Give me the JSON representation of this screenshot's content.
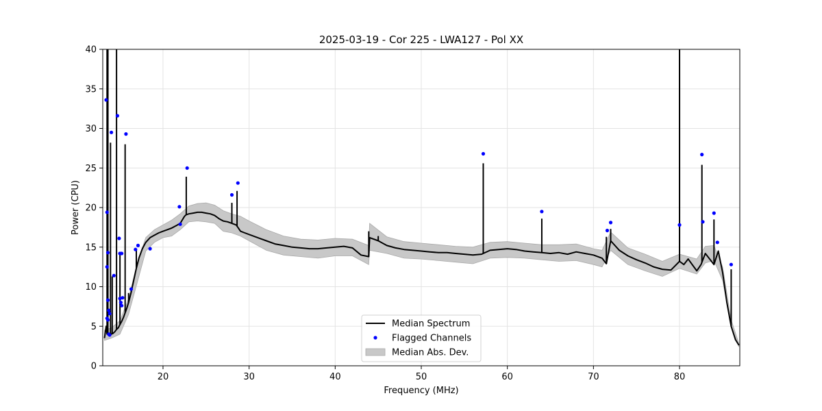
{
  "chart_data": {
    "type": "line",
    "title": "2025-03-19 - Cor 225 - LWA127 - Pol XX",
    "xlabel": "Frequency (MHz)",
    "ylabel": "Power (CPU)",
    "xlim": [
      13.0,
      87.0
    ],
    "ylim": [
      0,
      40
    ],
    "x_ticks": [
      20,
      30,
      40,
      50,
      60,
      70,
      80
    ],
    "y_ticks": [
      0,
      5,
      10,
      15,
      20,
      25,
      30,
      35,
      40
    ],
    "grid": true,
    "legend_position": "bottom-center",
    "legend": [
      {
        "label": "Median Spectrum",
        "kind": "line",
        "color": "#000000"
      },
      {
        "label": "Flagged Channels",
        "kind": "marker",
        "color": "#0000ff"
      },
      {
        "label": "Median Abs. Dev.",
        "kind": "band",
        "color": "#c8c8c8"
      }
    ],
    "series": [
      {
        "name": "Median Spectrum",
        "color": "#000000",
        "x": [
          13.2,
          13.4,
          13.5,
          13.6,
          13.7,
          13.8,
          13.9,
          14.0,
          14.2,
          14.4,
          14.6,
          14.8,
          14.9,
          15.0,
          15.2,
          15.4,
          15.6,
          15.8,
          16.0,
          16.3,
          16.6,
          16.9,
          17.2,
          17.6,
          18.0,
          18.5,
          19.0,
          19.5,
          20.0,
          20.5,
          21.0,
          21.5,
          22.0,
          22.5,
          22.7,
          23.0,
          23.5,
          24.0,
          24.5,
          25.0,
          25.5,
          26.0,
          26.5,
          27.0,
          27.5,
          28.0,
          28.5,
          28.7,
          29.0,
          29.5,
          30.0,
          31.0,
          32.0,
          33.0,
          34.0,
          35.0,
          36.0,
          37.0,
          38.0,
          39.0,
          40.0,
          41.0,
          42.0,
          43.0,
          43.9,
          44.0,
          45.0,
          46.0,
          47.0,
          48.0,
          49.0,
          50.0,
          51.0,
          52.0,
          53.0,
          54.0,
          55.0,
          56.0,
          57.0,
          58.0,
          59.0,
          60.0,
          61.0,
          62.0,
          63.0,
          64.0,
          65.0,
          66.0,
          67.0,
          68.0,
          69.0,
          70.0,
          71.0,
          71.5,
          72.0,
          73.0,
          74.0,
          75.0,
          76.0,
          77.0,
          78.0,
          79.0,
          80.0,
          80.5,
          81.0,
          82.0,
          82.5,
          83.0,
          83.5,
          84.0,
          84.5,
          85.0,
          85.5,
          86.0,
          86.5,
          86.9
        ],
        "values": [
          3.5,
          5.0,
          4.0,
          4.2,
          3.9,
          4.0,
          4.1,
          4.0,
          4.1,
          4.3,
          4.6,
          4.8,
          5.0,
          5.2,
          5.6,
          6.1,
          6.7,
          7.3,
          8.0,
          9.3,
          10.8,
          12.3,
          13.6,
          14.8,
          15.6,
          16.2,
          16.5,
          16.8,
          17.0,
          17.2,
          17.4,
          17.7,
          18.0,
          18.9,
          19.1,
          19.2,
          19.3,
          19.4,
          19.4,
          19.3,
          19.2,
          19.0,
          18.6,
          18.3,
          18.2,
          18.0,
          17.8,
          17.5,
          17.0,
          16.8,
          16.6,
          16.2,
          15.8,
          15.4,
          15.2,
          15.0,
          14.9,
          14.8,
          14.8,
          14.9,
          15.0,
          15.1,
          14.9,
          14.0,
          13.8,
          16.2,
          15.8,
          15.2,
          14.9,
          14.7,
          14.6,
          14.5,
          14.4,
          14.3,
          14.3,
          14.2,
          14.1,
          14.0,
          14.1,
          14.6,
          14.7,
          14.8,
          14.7,
          14.5,
          14.4,
          14.3,
          14.2,
          14.3,
          14.1,
          14.4,
          14.2,
          14.0,
          13.6,
          12.9,
          15.8,
          14.6,
          13.9,
          13.4,
          13.0,
          12.5,
          12.2,
          12.1,
          13.2,
          12.8,
          13.5,
          12.0,
          12.8,
          14.2,
          13.5,
          12.8,
          14.5,
          11.8,
          8.0,
          5.0,
          3.3,
          2.6
        ],
        "spikes": [
          {
            "x": 13.5,
            "value": 40
          },
          {
            "x": 13.6,
            "value": 40
          },
          {
            "x": 13.9,
            "value": 28.2
          },
          {
            "x": 14.1,
            "value": 11.3
          },
          {
            "x": 14.6,
            "value": 40
          },
          {
            "x": 15.0,
            "value": 14.3
          },
          {
            "x": 15.6,
            "value": 28.0
          },
          {
            "x": 16.0,
            "value": 9.2
          },
          {
            "x": 16.9,
            "value": 14.8
          },
          {
            "x": 22.7,
            "value": 23.9
          },
          {
            "x": 28.0,
            "value": 20.6
          },
          {
            "x": 28.6,
            "value": 22.1
          },
          {
            "x": 43.9,
            "value": 17.0
          },
          {
            "x": 45.0,
            "value": 16.4
          },
          {
            "x": 57.2,
            "value": 25.6
          },
          {
            "x": 64.0,
            "value": 18.6
          },
          {
            "x": 71.5,
            "value": 16.3
          },
          {
            "x": 72.0,
            "value": 17.3
          },
          {
            "x": 80.0,
            "value": 40
          },
          {
            "x": 82.6,
            "value": 25.4
          },
          {
            "x": 84.0,
            "value": 18.5
          },
          {
            "x": 86.0,
            "value": 12.2
          }
        ]
      },
      {
        "name": "Flagged Channels",
        "color": "#0000ff",
        "x": [
          13.4,
          13.5,
          13.6,
          13.5,
          13.6,
          13.7,
          13.8,
          13.5,
          13.6,
          13.7,
          13.8,
          14.0,
          14.3,
          14.7,
          14.9,
          15.0,
          15.1,
          15.2,
          15.3,
          15.0,
          15.2,
          15.7,
          16.3,
          16.8,
          17.1,
          18.5,
          21.9,
          22.0,
          22.8,
          28.0,
          28.7,
          57.2,
          64.0,
          71.6,
          72.0,
          80.0,
          82.6,
          82.7,
          84.0,
          84.4,
          86.0
        ],
        "values": [
          33.6,
          19.4,
          14.3,
          12.5,
          8.3,
          7.0,
          6.6,
          6.0,
          5.8,
          4.0,
          3.9,
          29.5,
          11.4,
          31.6,
          16.1,
          8.5,
          8.0,
          7.6,
          8.6,
          14.2,
          14.2,
          29.3,
          9.7,
          14.7,
          15.2,
          14.8,
          20.1,
          17.9,
          25.0,
          21.6,
          23.1,
          26.8,
          19.5,
          17.1,
          18.1,
          17.8,
          26.7,
          18.2,
          19.3,
          15.6,
          12.8
        ]
      },
      {
        "name": "Median Abs. Dev.",
        "color": "#c8c8c8",
        "x": [
          13.2,
          14.0,
          15.0,
          16.0,
          17.0,
          18.0,
          19.0,
          20.0,
          21.0,
          22.0,
          23.0,
          24.0,
          25.0,
          26.0,
          27.0,
          28.0,
          29.0,
          30.0,
          32.0,
          34.0,
          36.0,
          38.0,
          40.0,
          42.0,
          43.9,
          44.0,
          46.0,
          48.0,
          50.0,
          52.0,
          54.0,
          56.0,
          58.0,
          60.0,
          62.0,
          64.0,
          66.0,
          68.0,
          70.0,
          71.0,
          72.0,
          74.0,
          76.0,
          78.0,
          80.0,
          82.0,
          83.0,
          84.0,
          85.0,
          86.0,
          86.9
        ],
        "upper": [
          4.5,
          4.8,
          5.7,
          8.5,
          13.0,
          16.2,
          17.2,
          17.8,
          18.4,
          19.2,
          20.2,
          20.5,
          20.6,
          20.3,
          19.6,
          19.2,
          18.9,
          18.3,
          17.2,
          16.4,
          16.0,
          15.9,
          16.1,
          16.0,
          15.2,
          18.0,
          16.3,
          15.7,
          15.5,
          15.3,
          15.1,
          15.0,
          15.6,
          15.7,
          15.5,
          15.3,
          15.3,
          15.4,
          14.8,
          14.6,
          16.9,
          14.9,
          14.1,
          13.2,
          14.1,
          13.5,
          15.1,
          15.2,
          12.5,
          5.8,
          2.8
        ],
        "lower": [
          3.2,
          3.5,
          4.0,
          6.5,
          10.5,
          14.5,
          15.6,
          16.2,
          16.4,
          17.2,
          18.2,
          18.3,
          18.2,
          18.0,
          17.0,
          16.8,
          16.4,
          15.8,
          14.6,
          14.0,
          13.8,
          13.6,
          13.9,
          13.9,
          12.8,
          14.6,
          14.2,
          13.6,
          13.5,
          13.3,
          13.1,
          12.9,
          13.6,
          13.7,
          13.6,
          13.4,
          13.2,
          13.3,
          12.8,
          12.5,
          14.6,
          12.8,
          12.0,
          11.3,
          12.3,
          11.6,
          13.0,
          13.3,
          10.8,
          4.9,
          2.4
        ]
      }
    ]
  }
}
